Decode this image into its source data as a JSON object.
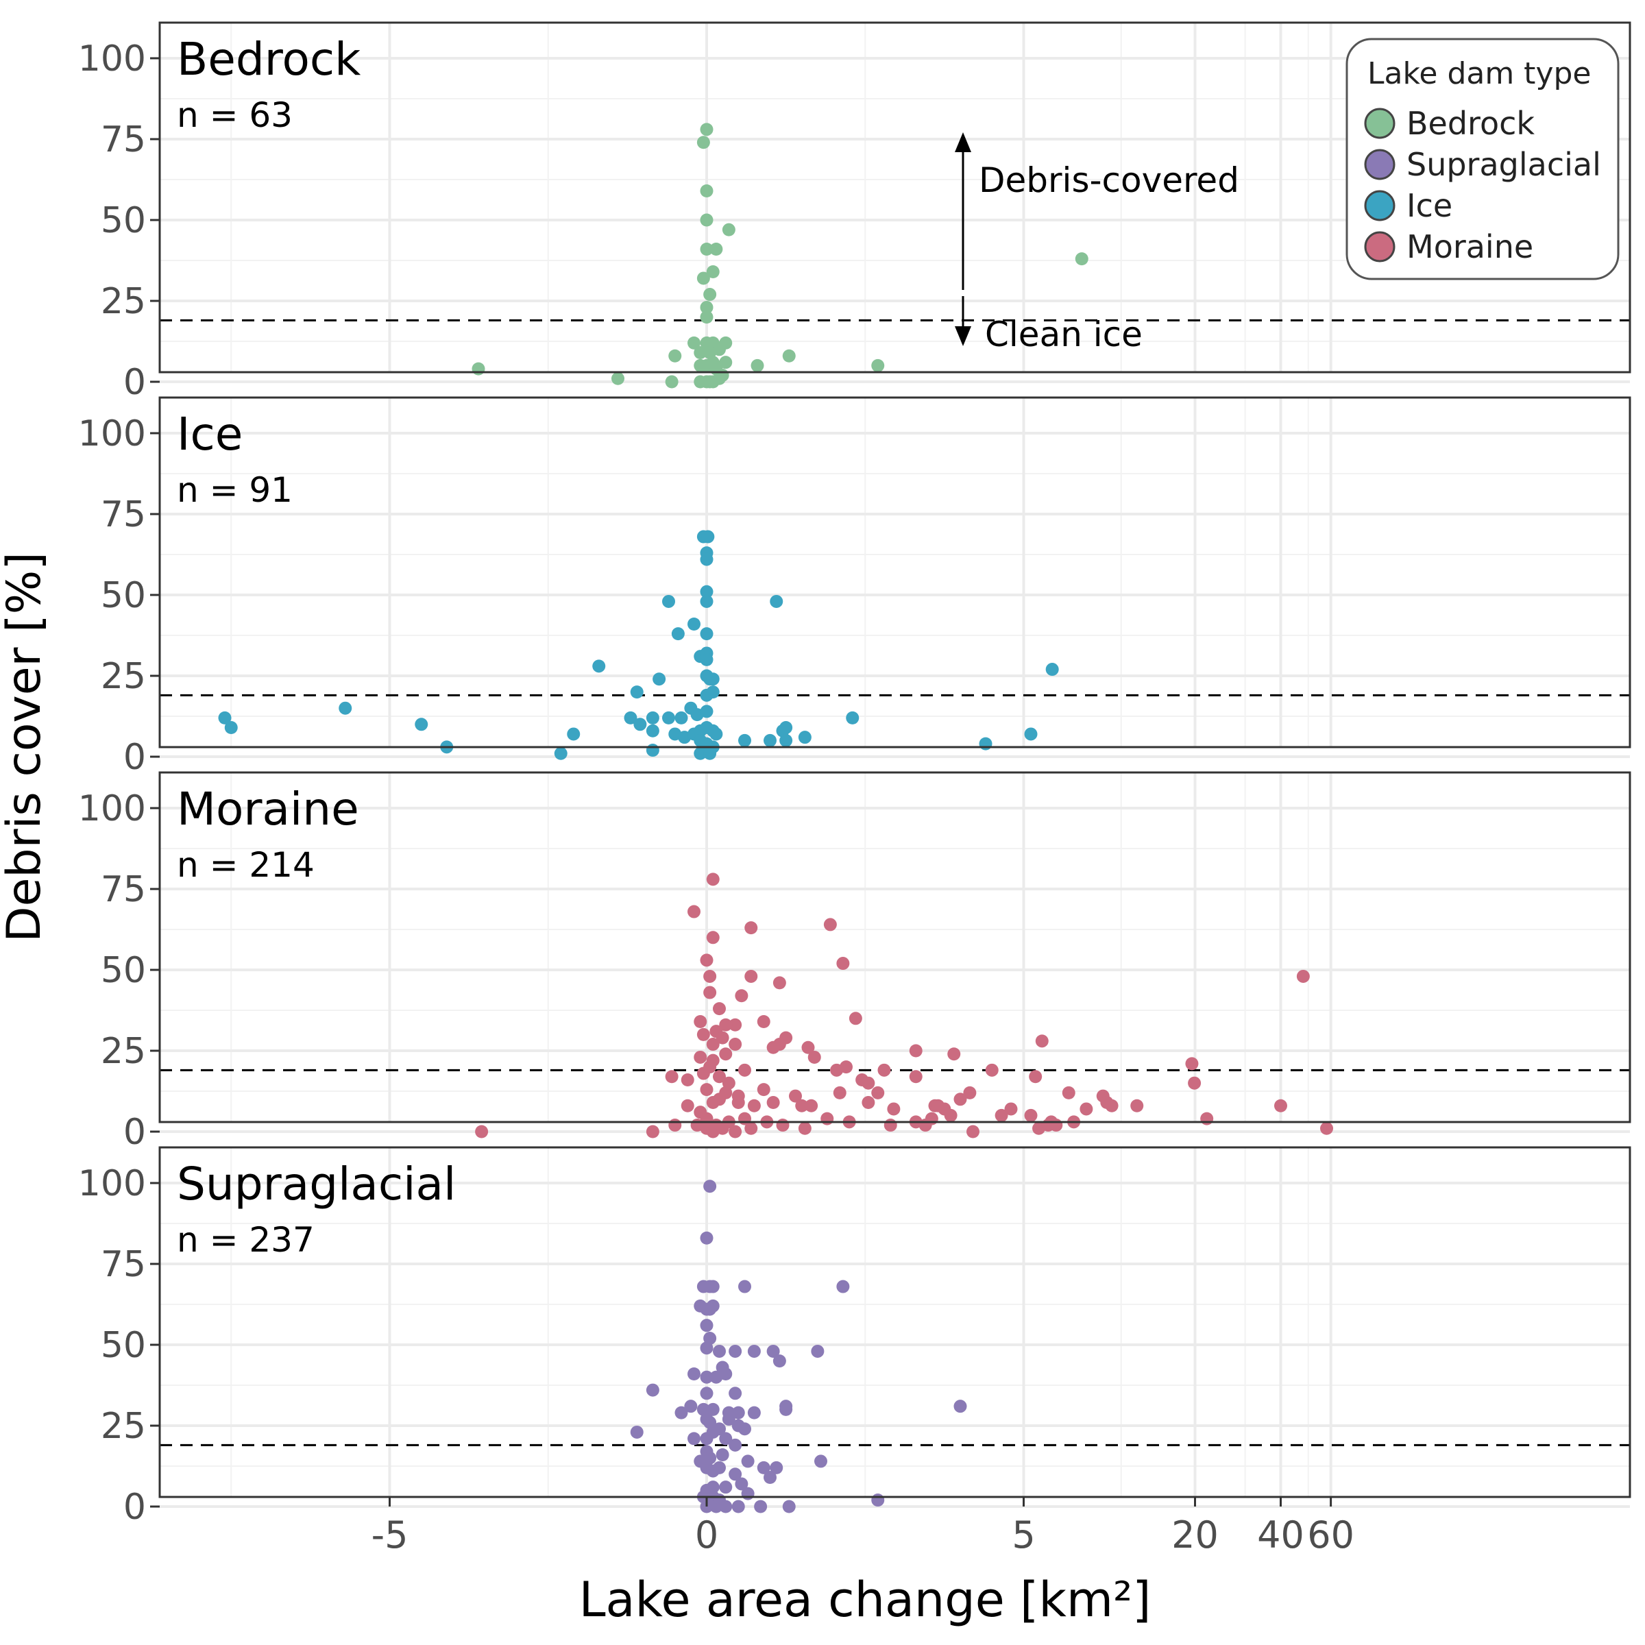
{
  "chart_data": {
    "type": "scatter",
    "xlabel": "Lake area change [km²]",
    "ylabel": "Debris cover [%]",
    "ylim": [
      0,
      100
    ],
    "y_ticks": [
      "0",
      "25",
      "50",
      "75",
      "100"
    ],
    "x_scale": "pseudo-log (linear near 0, log beyond 5)",
    "x_ticks": [
      "-5",
      "0",
      "5",
      "20",
      "40",
      "60"
    ],
    "x_tick_values": [
      -5,
      0,
      5,
      20,
      40,
      60
    ],
    "threshold_y": 19,
    "grid": true,
    "legend": {
      "title": "Lake dam type",
      "position": "top-right",
      "entries": [
        {
          "label": "Bedrock",
          "color": "#86c196"
        },
        {
          "label": "Supraglacial",
          "color": "#8a7ab5"
        },
        {
          "label": "Ice",
          "color": "#3ba4c2"
        },
        {
          "label": "Moraine",
          "color": "#cb6b80"
        }
      ]
    },
    "annotations": {
      "up": "Debris-covered",
      "down": "Clean ice"
    },
    "panels": [
      {
        "title": "Bedrock",
        "n": "n = 63",
        "color": "#86c196",
        "points": [
          [
            0,
            78
          ],
          [
            -0.05,
            74
          ],
          [
            0,
            59
          ],
          [
            0,
            50
          ],
          [
            0.35,
            47
          ],
          [
            0,
            41
          ],
          [
            0.15,
            41
          ],
          [
            0.1,
            34
          ],
          [
            -0.05,
            32
          ],
          [
            0.05,
            27
          ],
          [
            0,
            23
          ],
          [
            0,
            20
          ],
          [
            -0.2,
            12
          ],
          [
            0,
            12
          ],
          [
            0.1,
            12
          ],
          [
            0.3,
            12
          ],
          [
            0.2,
            10
          ],
          [
            -0.1,
            9
          ],
          [
            0.05,
            9
          ],
          [
            -0.5,
            8
          ],
          [
            1.3,
            8
          ],
          [
            0.1,
            6
          ],
          [
            0.3,
            6
          ],
          [
            0.8,
            5
          ],
          [
            0,
            5
          ],
          [
            -0.1,
            5
          ],
          [
            -3.6,
            4
          ],
          [
            2.7,
            5
          ],
          [
            0.15,
            4
          ],
          [
            -1.4,
            1
          ],
          [
            -0.55,
            0
          ],
          [
            -0.1,
            0
          ],
          [
            0,
            0
          ],
          [
            0.05,
            0
          ],
          [
            0.1,
            0
          ],
          [
            0.2,
            1
          ],
          [
            0.25,
            2
          ],
          [
            8,
            38
          ]
        ]
      },
      {
        "title": "Ice",
        "n": "n = 91",
        "color": "#3ba4c2",
        "points": [
          [
            -0.05,
            68
          ],
          [
            0.02,
            68
          ],
          [
            0,
            63
          ],
          [
            0,
            61
          ],
          [
            0,
            51
          ],
          [
            0,
            48
          ],
          [
            -0.6,
            48
          ],
          [
            1.1,
            48
          ],
          [
            -0.2,
            41
          ],
          [
            -0.45,
            38
          ],
          [
            0,
            38
          ],
          [
            -0.1,
            31
          ],
          [
            0,
            32
          ],
          [
            0,
            30
          ],
          [
            -1.7,
            28
          ],
          [
            6.3,
            27
          ],
          [
            -0.75,
            24
          ],
          [
            0,
            25
          ],
          [
            0.05,
            24
          ],
          [
            0.1,
            24
          ],
          [
            -1.1,
            20
          ],
          [
            0,
            19
          ],
          [
            0.1,
            20
          ],
          [
            -1.2,
            12
          ],
          [
            -1.05,
            10
          ],
          [
            -0.85,
            12
          ],
          [
            -0.6,
            12
          ],
          [
            -0.4,
            12
          ],
          [
            -0.25,
            15
          ],
          [
            -0.15,
            13
          ],
          [
            0,
            14
          ],
          [
            2.3,
            12
          ],
          [
            -7.6,
            12
          ],
          [
            -7.5,
            9
          ],
          [
            -5.7,
            15
          ],
          [
            -4.5,
            10
          ],
          [
            -4.1,
            3
          ],
          [
            -2.1,
            7
          ],
          [
            -2.3,
            1
          ],
          [
            -0.85,
            2
          ],
          [
            -0.85,
            8
          ],
          [
            -0.5,
            7
          ],
          [
            -0.35,
            6
          ],
          [
            -0.2,
            7
          ],
          [
            -0.1,
            8
          ],
          [
            0,
            9
          ],
          [
            0.1,
            8
          ],
          [
            0.15,
            7
          ],
          [
            -0.1,
            5
          ],
          [
            0,
            4
          ],
          [
            0.1,
            3
          ],
          [
            0,
            2
          ],
          [
            -0.1,
            1
          ],
          [
            0.05,
            1
          ],
          [
            0.6,
            5
          ],
          [
            1,
            5
          ],
          [
            1.2,
            8
          ],
          [
            1.25,
            9
          ],
          [
            1.25,
            5
          ],
          [
            1.55,
            6
          ],
          [
            4.4,
            4
          ],
          [
            5.3,
            7
          ]
        ]
      },
      {
        "title": "Moraine",
        "n": "n = 214",
        "color": "#cb6b80",
        "points": [
          [
            0.1,
            78
          ],
          [
            -0.2,
            68
          ],
          [
            0.1,
            60
          ],
          [
            0.7,
            63
          ],
          [
            1.95,
            64
          ],
          [
            2.15,
            52
          ],
          [
            0,
            53
          ],
          [
            0.05,
            48
          ],
          [
            0.7,
            48
          ],
          [
            1.15,
            46
          ],
          [
            48,
            48
          ],
          [
            0.05,
            43
          ],
          [
            0.55,
            42
          ],
          [
            0.2,
            38
          ],
          [
            -0.1,
            34
          ],
          [
            0.45,
            33
          ],
          [
            0.9,
            34
          ],
          [
            0.3,
            33
          ],
          [
            2.35,
            35
          ],
          [
            0.15,
            31
          ],
          [
            -0.05,
            30
          ],
          [
            0.25,
            29
          ],
          [
            0.1,
            27
          ],
          [
            0.45,
            27
          ],
          [
            1.25,
            29
          ],
          [
            1.15,
            27
          ],
          [
            1.05,
            26
          ],
          [
            1.6,
            26
          ],
          [
            3.3,
            25
          ],
          [
            3.9,
            24
          ],
          [
            5.8,
            28
          ],
          [
            0.6,
            19
          ],
          [
            0.1,
            22
          ],
          [
            -0.1,
            23
          ],
          [
            0.3,
            24
          ],
          [
            1.7,
            23
          ],
          [
            2.2,
            20
          ],
          [
            2.05,
            19
          ],
          [
            2.8,
            19
          ],
          [
            4.5,
            19
          ],
          [
            19.5,
            21
          ],
          [
            -0.55,
            17
          ],
          [
            -0.3,
            16
          ],
          [
            -0.05,
            18
          ],
          [
            0.05,
            20
          ],
          [
            0.2,
            17
          ],
          [
            0.35,
            15
          ],
          [
            2.45,
            16
          ],
          [
            2.55,
            15
          ],
          [
            3.3,
            17
          ],
          [
            5.5,
            17
          ],
          [
            19.9,
            15
          ],
          [
            0,
            13
          ],
          [
            0.3,
            12
          ],
          [
            0.5,
            11
          ],
          [
            0.9,
            13
          ],
          [
            1.4,
            11
          ],
          [
            2.1,
            12
          ],
          [
            2.7,
            12
          ],
          [
            3.6,
            8
          ],
          [
            4.15,
            12
          ],
          [
            7.2,
            12
          ],
          [
            9.5,
            11
          ],
          [
            9.8,
            9
          ],
          [
            10.2,
            8
          ],
          [
            0.1,
            9
          ],
          [
            0.2,
            10
          ],
          [
            0.5,
            9
          ],
          [
            0.75,
            8
          ],
          [
            1.05,
            9
          ],
          [
            1.5,
            8
          ],
          [
            1.65,
            8
          ],
          [
            2.55,
            9
          ],
          [
            2.95,
            7
          ],
          [
            3.65,
            8
          ],
          [
            4,
            10
          ],
          [
            4.8,
            7
          ],
          [
            5.3,
            5
          ],
          [
            3.85,
            5
          ],
          [
            3.75,
            7
          ],
          [
            3.55,
            4
          ],
          [
            3.3,
            3
          ],
          [
            3.45,
            2
          ],
          [
            2.9,
            2
          ],
          [
            2.25,
            3
          ],
          [
            1.9,
            4
          ],
          [
            1.55,
            1
          ],
          [
            1.2,
            2
          ],
          [
            0.95,
            3
          ],
          [
            0.6,
            4
          ],
          [
            0.35,
            3
          ],
          [
            0.15,
            2
          ],
          [
            0,
            4
          ],
          [
            -0.15,
            2
          ],
          [
            -0.3,
            8
          ],
          [
            -0.1,
            6
          ],
          [
            0,
            1
          ],
          [
            0.1,
            0
          ],
          [
            0.25,
            1
          ],
          [
            0.45,
            0
          ],
          [
            0.7,
            1
          ],
          [
            -0.5,
            2
          ],
          [
            -0.85,
            0
          ],
          [
            -3.55,
            0
          ],
          [
            4.2,
            0
          ],
          [
            4.65,
            5
          ],
          [
            5.65,
            1
          ],
          [
            6.1,
            2
          ],
          [
            6.25,
            3
          ],
          [
            6.5,
            2
          ],
          [
            7.5,
            3
          ],
          [
            8.3,
            7
          ],
          [
            12.5,
            8
          ],
          [
            22,
            4
          ],
          [
            40,
            8
          ],
          [
            58,
            1
          ]
        ]
      },
      {
        "title": "Supraglacial",
        "n": "n = 237",
        "color": "#8a7ab5",
        "points": [
          [
            0.05,
            99
          ],
          [
            0,
            83
          ],
          [
            -0.05,
            68
          ],
          [
            0.05,
            68
          ],
          [
            0.1,
            68
          ],
          [
            0.6,
            68
          ],
          [
            2.15,
            68
          ],
          [
            -0.1,
            62
          ],
          [
            0,
            61
          ],
          [
            0.1,
            62
          ],
          [
            0.05,
            61
          ],
          [
            0,
            56
          ],
          [
            0.05,
            52
          ],
          [
            0,
            49
          ],
          [
            0.2,
            48
          ],
          [
            0.45,
            48
          ],
          [
            0.75,
            48
          ],
          [
            1.05,
            48
          ],
          [
            1.15,
            45
          ],
          [
            1.75,
            48
          ],
          [
            -0.2,
            41
          ],
          [
            0,
            40
          ],
          [
            0.15,
            40
          ],
          [
            0.25,
            43
          ],
          [
            0.3,
            41
          ],
          [
            -0.85,
            36
          ],
          [
            0,
            35
          ],
          [
            0.45,
            35
          ],
          [
            -0.25,
            31
          ],
          [
            -0.05,
            30
          ],
          [
            0.1,
            30
          ],
          [
            0.35,
            29
          ],
          [
            0.5,
            29
          ],
          [
            0.75,
            29
          ],
          [
            1.25,
            30
          ],
          [
            1.25,
            31
          ],
          [
            4,
            31
          ],
          [
            -0.4,
            29
          ],
          [
            0,
            27
          ],
          [
            0.05,
            26
          ],
          [
            0.2,
            24
          ],
          [
            0.35,
            27
          ],
          [
            0.5,
            25
          ],
          [
            0.6,
            24
          ],
          [
            -1.1,
            23
          ],
          [
            -0.2,
            21
          ],
          [
            0,
            21
          ],
          [
            0.1,
            23
          ],
          [
            0.3,
            21
          ],
          [
            0.45,
            19
          ],
          [
            0,
            17
          ],
          [
            -0.1,
            14
          ],
          [
            0.05,
            15
          ],
          [
            0.25,
            16
          ],
          [
            0.65,
            14
          ],
          [
            1.8,
            14
          ],
          [
            0,
            12
          ],
          [
            0.1,
            11
          ],
          [
            0.2,
            12
          ],
          [
            0.45,
            10
          ],
          [
            0.9,
            12
          ],
          [
            1.1,
            12
          ],
          [
            1,
            9
          ],
          [
            0.55,
            7
          ],
          [
            0.3,
            6
          ],
          [
            0.1,
            6
          ],
          [
            0,
            5
          ],
          [
            -0.05,
            3
          ],
          [
            0.1,
            3
          ],
          [
            0.2,
            2
          ],
          [
            0.65,
            4
          ],
          [
            2.7,
            2
          ],
          [
            0,
            0
          ],
          [
            0.15,
            0
          ],
          [
            0.3,
            0
          ],
          [
            0.5,
            0
          ],
          [
            0.85,
            0
          ],
          [
            1.3,
            0
          ]
        ]
      }
    ]
  }
}
